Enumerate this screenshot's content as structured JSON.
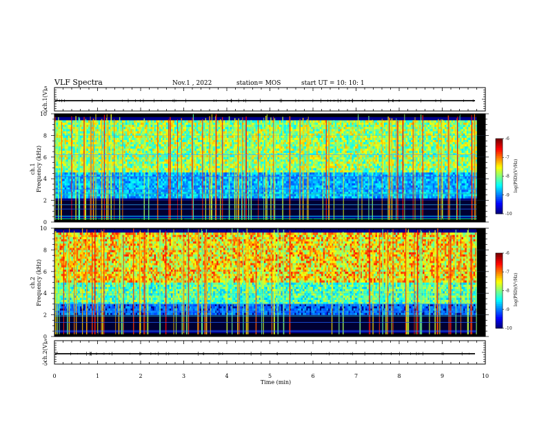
{
  "header": {
    "title": "VLF Spectra",
    "date": "Nov.1 , 2022",
    "station": "station= MOS",
    "start": "start UT = 10: 10: 1"
  },
  "chart_data": [
    {
      "type": "line",
      "panel": "ch1-waveform",
      "ylabel": "ch.1(V)",
      "ylim": [
        -5,
        5
      ],
      "yticks": [
        "5",
        "-5"
      ],
      "xlim": [
        0,
        10
      ],
      "series": [
        {
          "values_description_level": 0
        }
      ]
    },
    {
      "type": "heatmap",
      "panel": "ch1-spectrogram",
      "ylabel": "ch.1\nFrequency (kHz)",
      "ylabel_top": "ch.1",
      "ylabel_main": "Frequency (kHz)",
      "ylim": [
        0,
        10
      ],
      "yticks": [
        "0",
        "2",
        "4",
        "6",
        "8",
        "10"
      ],
      "xlim": [
        0,
        10
      ],
      "data_end_min": 9.8,
      "colorbar": {
        "label": "log(PSD)(V²/Hz)",
        "range": [
          -10,
          -6
        ],
        "ticks": [
          "-6",
          "-7",
          "-8",
          "-9",
          "-10"
        ]
      }
    },
    {
      "type": "heatmap",
      "panel": "ch2-spectrogram",
      "ylabel_top": "ch.2",
      "ylabel_main": "Frequency (kHz)",
      "ylim": [
        0,
        10
      ],
      "yticks": [
        "0",
        "2",
        "4",
        "6",
        "8",
        "10"
      ],
      "xlim": [
        0,
        10
      ],
      "data_end_min": 9.8,
      "colorbar": {
        "label": "log(PSD)(V²/Hz)",
        "range": [
          -10,
          -6
        ],
        "ticks": [
          "-6",
          "-7",
          "-8",
          "-9",
          "-10"
        ]
      }
    },
    {
      "type": "line",
      "panel": "ch2-waveform",
      "ylabel": "ch.2(V)",
      "ylim": [
        -5,
        5
      ],
      "yticks": [
        "5",
        "-5"
      ],
      "xlim": [
        0,
        10
      ]
    }
  ],
  "xaxis": {
    "label": "Time (min)",
    "ticks": [
      "0",
      "1",
      "2",
      "3",
      "4",
      "5",
      "6",
      "7",
      "8",
      "9",
      "10"
    ]
  },
  "labels": {
    "ch1_wave": "ch.1(V)",
    "ch2_wave": "ch.2(V)",
    "ch1_top": "ch.1",
    "ch2_top": "ch.2",
    "freq": "Frequency (kHz)",
    "cbar": "log(PSD)(V²/Hz)"
  }
}
